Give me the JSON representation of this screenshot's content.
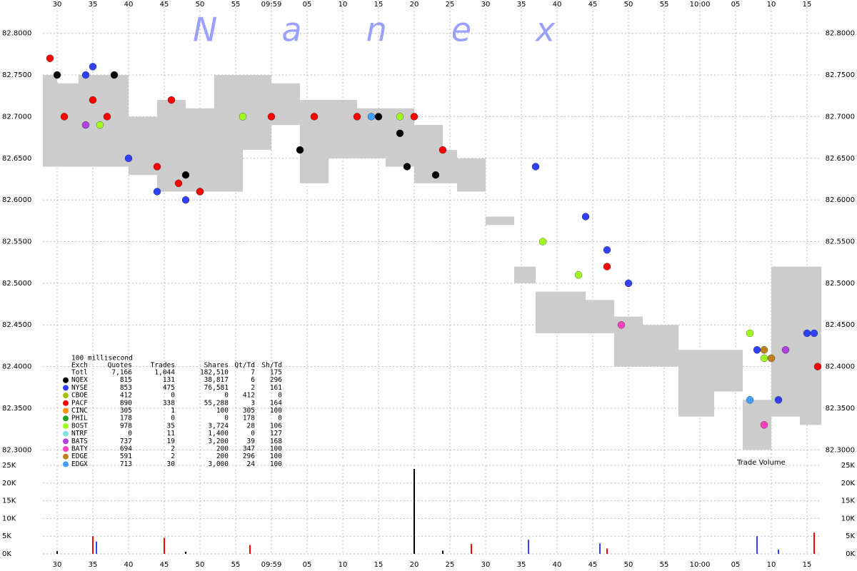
{
  "watermark": "Nanex",
  "chart_data": [
    {
      "type": "scatter",
      "xlim": [
        28,
        137
      ],
      "xticks": [
        {
          "value": 30,
          "label": "30"
        },
        {
          "value": 35,
          "label": "35"
        },
        {
          "value": 40,
          "label": "40"
        },
        {
          "value": 45,
          "label": "45"
        },
        {
          "value": 50,
          "label": "50"
        },
        {
          "value": 55,
          "label": "55"
        },
        {
          "value": 60,
          "label": "09:59"
        },
        {
          "value": 65,
          "label": "05"
        },
        {
          "value": 70,
          "label": "10"
        },
        {
          "value": 75,
          "label": "15"
        },
        {
          "value": 80,
          "label": "20"
        },
        {
          "value": 85,
          "label": "25"
        },
        {
          "value": 90,
          "label": "30"
        },
        {
          "value": 95,
          "label": "35"
        },
        {
          "value": 100,
          "label": "40"
        },
        {
          "value": 105,
          "label": "45"
        },
        {
          "value": 110,
          "label": "50"
        },
        {
          "value": 115,
          "label": "55"
        },
        {
          "value": 120,
          "label": "10:00"
        },
        {
          "value": 125,
          "label": "05"
        },
        {
          "value": 130,
          "label": "10"
        },
        {
          "value": 135,
          "label": "15"
        }
      ],
      "ylim": [
        82.29,
        82.84
      ],
      "yticks": [
        {
          "value": 82.8,
          "label": "82.8000"
        },
        {
          "value": 82.75,
          "label": "82.7500"
        },
        {
          "value": 82.7,
          "label": "82.7000"
        },
        {
          "value": 82.65,
          "label": "82.6500"
        },
        {
          "value": 82.6,
          "label": "82.6000"
        },
        {
          "value": 82.55,
          "label": "82.5500"
        },
        {
          "value": 82.5,
          "label": "82.5000"
        },
        {
          "value": 82.45,
          "label": "82.4500"
        },
        {
          "value": 82.4,
          "label": "82.4000"
        },
        {
          "value": 82.35,
          "label": "82.3500"
        },
        {
          "value": 82.3,
          "label": "82.3000"
        }
      ],
      "grid": true,
      "band": {
        "color": "#cccccc",
        "x": [
          28,
          30,
          33,
          36,
          40,
          44,
          48,
          52,
          56,
          60,
          64,
          68,
          72,
          76,
          80,
          84,
          86,
          90,
          94,
          97,
          100,
          104,
          108,
          112,
          117,
          122,
          126,
          130,
          134,
          137
        ],
        "low": [
          82.64,
          82.64,
          82.64,
          82.64,
          82.63,
          82.61,
          82.61,
          82.61,
          82.66,
          82.69,
          82.62,
          82.65,
          82.65,
          82.64,
          82.62,
          82.62,
          82.61,
          82.57,
          82.5,
          82.44,
          82.44,
          82.44,
          82.4,
          82.4,
          82.34,
          82.37,
          82.3,
          82.34,
          82.33,
          82.33
        ],
        "high": [
          82.75,
          82.74,
          82.75,
          82.75,
          82.7,
          82.72,
          82.71,
          82.75,
          82.75,
          82.74,
          82.72,
          82.72,
          82.71,
          82.71,
          82.69,
          82.66,
          82.65,
          82.58,
          82.52,
          82.49,
          82.49,
          82.48,
          82.46,
          82.45,
          82.42,
          82.42,
          82.36,
          82.52,
          82.52,
          82.49
        ]
      },
      "series": [
        {
          "name": "NYSE",
          "color": "#3040ff",
          "x": [
            34,
            35,
            40,
            44,
            48,
            50,
            97,
            104,
            107,
            110,
            128,
            131,
            135,
            136
          ],
          "values": [
            82.75,
            82.76,
            82.65,
            82.61,
            82.6,
            82.61,
            82.64,
            82.58,
            82.54,
            82.5,
            82.42,
            82.36,
            82.44,
            82.44
          ]
        },
        {
          "name": "PACF",
          "color": "#ff0000",
          "x": [
            29,
            31,
            35,
            37,
            44,
            46,
            47,
            50,
            60,
            66,
            72,
            80,
            84,
            107,
            136.5
          ],
          "values": [
            82.77,
            82.7,
            82.72,
            82.7,
            82.64,
            82.72,
            82.62,
            82.61,
            82.7,
            82.7,
            82.7,
            82.7,
            82.66,
            82.52,
            82.4
          ]
        },
        {
          "name": "NQEX",
          "color": "#000000",
          "x": [
            30,
            38,
            48,
            64,
            75,
            78,
            79,
            83
          ],
          "values": [
            82.75,
            82.75,
            82.63,
            82.66,
            82.7,
            82.68,
            82.64,
            82.63
          ]
        },
        {
          "name": "BOST",
          "color": "#a0ff20",
          "x": [
            36,
            56,
            78,
            98,
            103,
            127,
            129
          ],
          "values": [
            82.69,
            82.7,
            82.7,
            82.55,
            82.51,
            82.44,
            82.41
          ]
        },
        {
          "name": "BATS",
          "color": "#b040e0",
          "x": [
            34,
            132
          ],
          "values": [
            82.69,
            82.42
          ]
        },
        {
          "name": "BATY",
          "color": "#ff40c0",
          "x": [
            109,
            129
          ],
          "values": [
            82.45,
            82.33
          ]
        },
        {
          "name": "EDGE",
          "color": "#c08020",
          "x": [
            129,
            130
          ],
          "values": [
            82.42,
            82.41
          ]
        },
        {
          "name": "EDGX",
          "color": "#40a0ff",
          "x": [
            74,
            127
          ],
          "values": [
            82.7,
            82.36
          ]
        }
      ],
      "stats": {
        "title": "100 millisecond",
        "header": [
          "Exch",
          "Quotes",
          "Trades",
          "Shares",
          "Qt/Td",
          "Sh/Td"
        ],
        "rows": [
          [
            "Totl",
            "7,166",
            "1,044",
            "182,510",
            "7",
            "175"
          ],
          [
            "NQEX",
            "815",
            "131",
            "38,817",
            "6",
            "296"
          ],
          [
            "NYSE",
            "853",
            "475",
            "76,581",
            "2",
            "161"
          ],
          [
            "CBOE",
            "412",
            "0",
            "0",
            "412",
            "0"
          ],
          [
            "PACF",
            "890",
            "338",
            "55,288",
            "3",
            "164"
          ],
          [
            "CINC",
            "305",
            "1",
            "100",
            "305",
            "100"
          ],
          [
            "PHIL",
            "178",
            "0",
            "0",
            "178",
            "0"
          ],
          [
            "BOST",
            "978",
            "35",
            "3,724",
            "28",
            "106"
          ],
          [
            "NTRF",
            "0",
            "11",
            "1,400",
            "0",
            "127"
          ],
          [
            "BATS",
            "737",
            "19",
            "3,200",
            "39",
            "168"
          ],
          [
            "BATY",
            "694",
            "2",
            "200",
            "347",
            "100"
          ],
          [
            "EDGE",
            "591",
            "2",
            "200",
            "296",
            "100"
          ],
          [
            "EDGX",
            "713",
            "30",
            "3,000",
            "24",
            "100"
          ]
        ],
        "row_colors": [
          null,
          "#000000",
          "#3040ff",
          "#a0c000",
          "#ff0000",
          "#ff9000",
          "#20a020",
          "#a0ff20",
          "#80e0e0",
          "#b040e0",
          "#ff40c0",
          "#c08020",
          "#40a0ff"
        ]
      }
    },
    {
      "type": "bar",
      "title": "Trade Volume",
      "ylim": [
        0,
        25000
      ],
      "yticks": [
        {
          "value": 0,
          "label": "0K"
        },
        {
          "value": 5000,
          "label": "5K"
        },
        {
          "value": 10000,
          "label": "10K"
        },
        {
          "value": 15000,
          "label": "15K"
        },
        {
          "value": 20000,
          "label": "20K"
        },
        {
          "value": 25000,
          "label": "25K"
        }
      ],
      "grid": true,
      "series": [
        {
          "name": "NQEX",
          "color": "#000000",
          "x": [
            30,
            48,
            80,
            84
          ],
          "values": [
            800,
            600,
            24000,
            900
          ]
        },
        {
          "name": "PACF",
          "color": "#ff0000",
          "x": [
            35,
            45,
            57,
            88,
            107,
            136
          ],
          "values": [
            5000,
            4500,
            2500,
            2800,
            1500,
            6000
          ]
        },
        {
          "name": "NYSE",
          "color": "#3040ff",
          "x": [
            35.5,
            96,
            106,
            128,
            131
          ],
          "values": [
            3500,
            4000,
            3000,
            5000,
            1200
          ]
        }
      ]
    }
  ]
}
